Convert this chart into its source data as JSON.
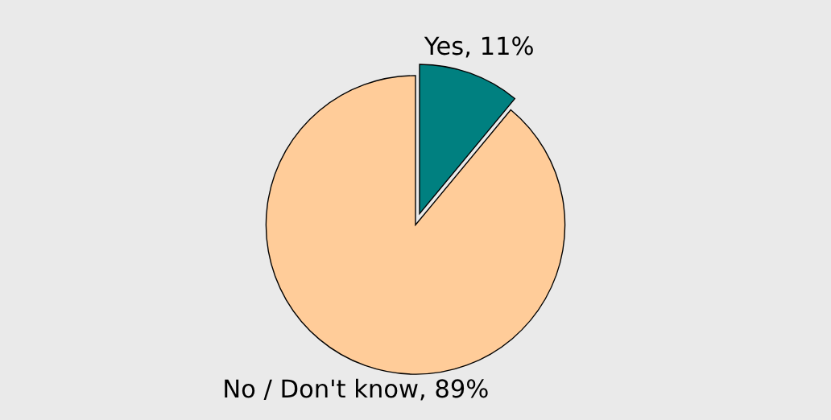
{
  "chart_data": {
    "type": "pie",
    "categories": [
      "Yes, 11%",
      "No / Don't know, 89%"
    ],
    "values": [
      11,
      89
    ],
    "colors": [
      "#008080",
      "#ffcc99"
    ]
  }
}
